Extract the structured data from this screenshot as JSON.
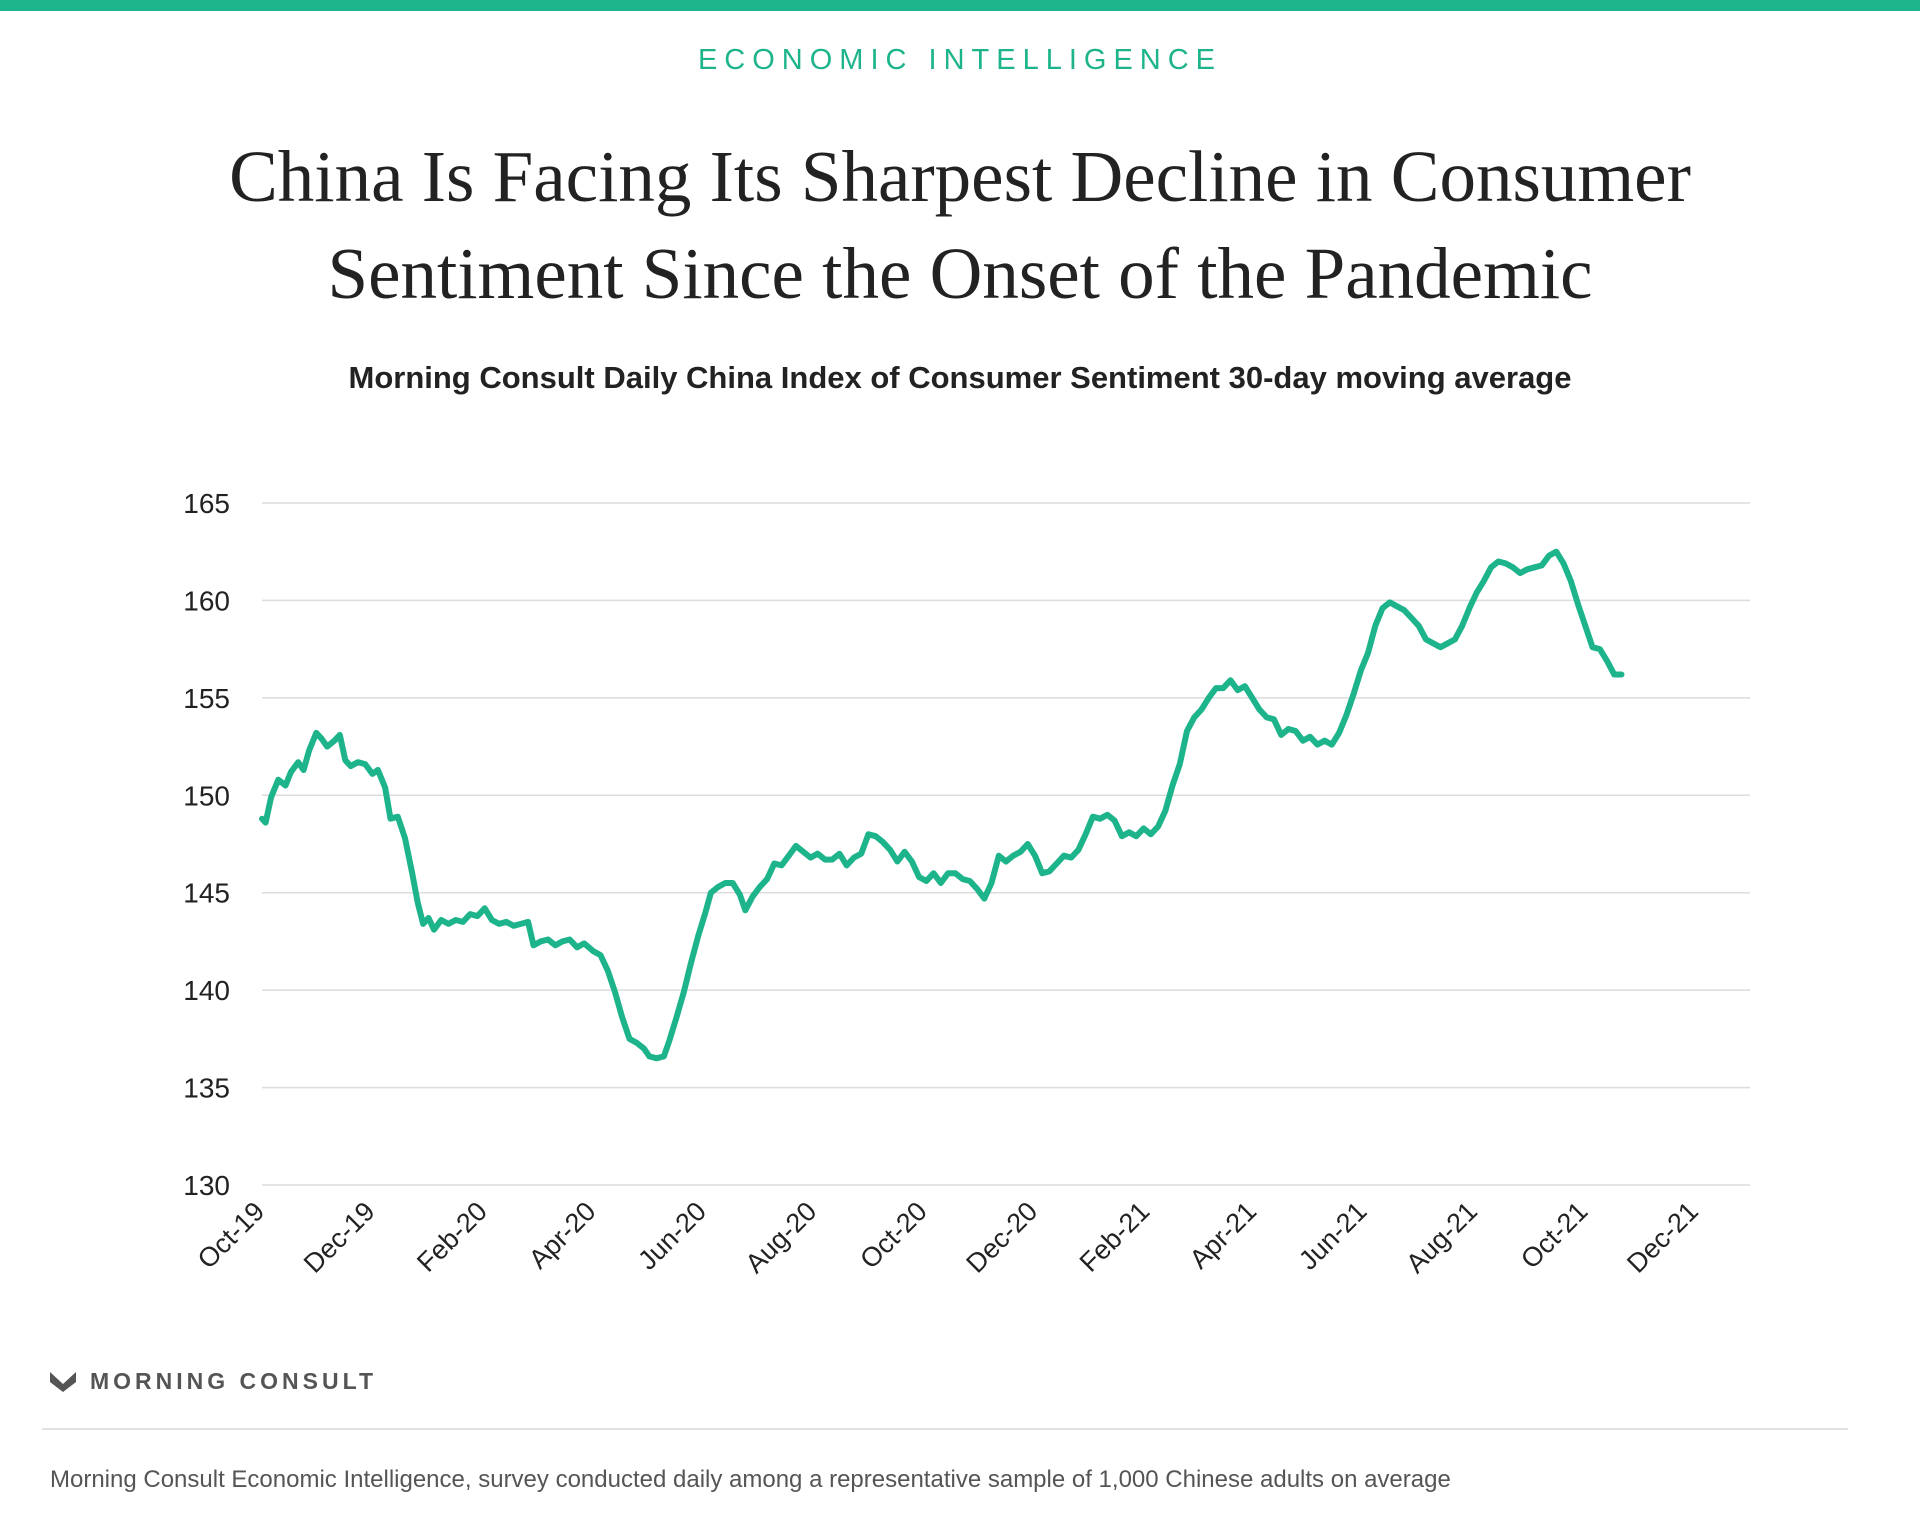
{
  "colors": {
    "accent": "#1db48b",
    "grid": "#dcdcdc",
    "text": "#222222"
  },
  "header": {
    "kicker": "ECONOMIC INTELLIGENCE",
    "title_line1": "China Is Facing Its Sharpest Decline in Consumer",
    "title_line2": "Sentiment Since the Onset of the Pandemic"
  },
  "footer": {
    "brand": "MORNING CONSULT",
    "source": "Morning Consult Economic Intelligence, survey conducted daily among a representative sample of 1,000 Chinese adults on average"
  },
  "chart_data": {
    "type": "line",
    "title": "Morning Consult Daily China Index of Consumer Sentiment 30-day moving average",
    "xlabel": "",
    "ylabel": "",
    "ylim": [
      130,
      165
    ],
    "yticks": [
      130,
      135,
      140,
      145,
      150,
      155,
      160,
      165
    ],
    "xlim": [
      "2019-10-01",
      "2021-12-31"
    ],
    "xticks": [
      {
        "label": "Oct-19",
        "date": "2019-10-01"
      },
      {
        "label": "Dec-19",
        "date": "2019-12-01"
      },
      {
        "label": "Feb-20",
        "date": "2020-02-01"
      },
      {
        "label": "Apr-20",
        "date": "2020-04-01"
      },
      {
        "label": "Jun-20",
        "date": "2020-06-01"
      },
      {
        "label": "Aug-20",
        "date": "2020-08-01"
      },
      {
        "label": "Oct-20",
        "date": "2020-10-01"
      },
      {
        "label": "Dec-20",
        "date": "2020-12-01"
      },
      {
        "label": "Feb-21",
        "date": "2021-02-01"
      },
      {
        "label": "Apr-21",
        "date": "2021-04-01"
      },
      {
        "label": "Jun-21",
        "date": "2021-06-01"
      },
      {
        "label": "Aug-21",
        "date": "2021-08-01"
      },
      {
        "label": "Oct-21",
        "date": "2021-10-01"
      },
      {
        "label": "Dec-21",
        "date": "2021-12-01"
      }
    ],
    "grid": true,
    "legend": "none",
    "series": [
      {
        "points": [
          [
            "2019-10-01",
            148.8
          ],
          [
            "2019-10-03",
            148.6
          ],
          [
            "2019-10-06",
            149.9
          ],
          [
            "2019-10-10",
            150.8
          ],
          [
            "2019-10-14",
            150.5
          ],
          [
            "2019-10-17",
            151.2
          ],
          [
            "2019-10-21",
            151.7
          ],
          [
            "2019-10-24",
            151.3
          ],
          [
            "2019-10-27",
            152.3
          ],
          [
            "2019-10-31",
            153.2
          ],
          [
            "2019-11-03",
            152.9
          ],
          [
            "2019-11-06",
            152.5
          ],
          [
            "2019-11-10",
            152.8
          ],
          [
            "2019-11-13",
            153.1
          ],
          [
            "2019-11-16",
            151.8
          ],
          [
            "2019-11-19",
            151.5
          ],
          [
            "2019-11-23",
            151.7
          ],
          [
            "2019-11-27",
            151.6
          ],
          [
            "2019-12-01",
            151.1
          ],
          [
            "2019-12-04",
            151.3
          ],
          [
            "2019-12-08",
            150.4
          ],
          [
            "2019-12-11",
            148.8
          ],
          [
            "2019-12-15",
            148.9
          ],
          [
            "2019-12-19",
            147.8
          ],
          [
            "2019-12-23",
            146.0
          ],
          [
            "2019-12-26",
            144.5
          ],
          [
            "2019-12-29",
            143.4
          ],
          [
            "2020-01-01",
            143.7
          ],
          [
            "2020-01-04",
            143.1
          ],
          [
            "2020-01-08",
            143.6
          ],
          [
            "2020-01-12",
            143.4
          ],
          [
            "2020-01-16",
            143.6
          ],
          [
            "2020-01-20",
            143.5
          ],
          [
            "2020-01-24",
            143.9
          ],
          [
            "2020-01-28",
            143.8
          ],
          [
            "2020-02-01",
            144.2
          ],
          [
            "2020-02-05",
            143.6
          ],
          [
            "2020-02-09",
            143.4
          ],
          [
            "2020-02-13",
            143.5
          ],
          [
            "2020-02-17",
            143.3
          ],
          [
            "2020-02-21",
            143.4
          ],
          [
            "2020-02-25",
            143.5
          ],
          [
            "2020-02-28",
            142.3
          ],
          [
            "2020-03-03",
            142.5
          ],
          [
            "2020-03-07",
            142.6
          ],
          [
            "2020-03-11",
            142.3
          ],
          [
            "2020-03-15",
            142.5
          ],
          [
            "2020-03-19",
            142.6
          ],
          [
            "2020-03-23",
            142.2
          ],
          [
            "2020-03-27",
            142.4
          ],
          [
            "2020-04-01",
            142.0
          ],
          [
            "2020-04-05",
            141.8
          ],
          [
            "2020-04-09",
            141.0
          ],
          [
            "2020-04-13",
            139.9
          ],
          [
            "2020-04-17",
            138.6
          ],
          [
            "2020-04-21",
            137.5
          ],
          [
            "2020-04-25",
            137.3
          ],
          [
            "2020-04-29",
            137.0
          ],
          [
            "2020-05-02",
            136.6
          ],
          [
            "2020-05-06",
            136.5
          ],
          [
            "2020-05-10",
            136.6
          ],
          [
            "2020-05-13",
            137.4
          ],
          [
            "2020-05-17",
            138.6
          ],
          [
            "2020-05-21",
            139.9
          ],
          [
            "2020-05-25",
            141.4
          ],
          [
            "2020-05-29",
            142.8
          ],
          [
            "2020-06-02",
            144.0
          ],
          [
            "2020-06-05",
            145.0
          ],
          [
            "2020-06-09",
            145.3
          ],
          [
            "2020-06-13",
            145.5
          ],
          [
            "2020-06-17",
            145.5
          ],
          [
            "2020-06-21",
            144.9
          ],
          [
            "2020-06-24",
            144.1
          ],
          [
            "2020-06-28",
            144.8
          ],
          [
            "2020-07-02",
            145.3
          ],
          [
            "2020-07-06",
            145.7
          ],
          [
            "2020-07-10",
            146.5
          ],
          [
            "2020-07-14",
            146.4
          ],
          [
            "2020-07-18",
            146.9
          ],
          [
            "2020-07-22",
            147.4
          ],
          [
            "2020-07-26",
            147.1
          ],
          [
            "2020-07-30",
            146.8
          ],
          [
            "2020-08-03",
            147.0
          ],
          [
            "2020-08-07",
            146.7
          ],
          [
            "2020-08-11",
            146.7
          ],
          [
            "2020-08-15",
            147.0
          ],
          [
            "2020-08-19",
            146.4
          ],
          [
            "2020-08-23",
            146.8
          ],
          [
            "2020-08-27",
            147.0
          ],
          [
            "2020-08-31",
            148.0
          ],
          [
            "2020-09-04",
            147.9
          ],
          [
            "2020-09-08",
            147.6
          ],
          [
            "2020-09-12",
            147.2
          ],
          [
            "2020-09-16",
            146.6
          ],
          [
            "2020-09-20",
            147.1
          ],
          [
            "2020-09-24",
            146.6
          ],
          [
            "2020-09-28",
            145.8
          ],
          [
            "2020-10-02",
            145.6
          ],
          [
            "2020-10-06",
            146.0
          ],
          [
            "2020-10-10",
            145.5
          ],
          [
            "2020-10-14",
            146.0
          ],
          [
            "2020-10-18",
            146.0
          ],
          [
            "2020-10-22",
            145.7
          ],
          [
            "2020-10-26",
            145.6
          ],
          [
            "2020-10-30",
            145.2
          ],
          [
            "2020-11-03",
            144.7
          ],
          [
            "2020-11-07",
            145.5
          ],
          [
            "2020-11-11",
            146.9
          ],
          [
            "2020-11-15",
            146.6
          ],
          [
            "2020-11-19",
            146.9
          ],
          [
            "2020-11-23",
            147.1
          ],
          [
            "2020-11-27",
            147.5
          ],
          [
            "2020-12-01",
            146.9
          ],
          [
            "2020-12-05",
            146.0
          ],
          [
            "2020-12-09",
            146.1
          ],
          [
            "2020-12-13",
            146.5
          ],
          [
            "2020-12-17",
            146.9
          ],
          [
            "2020-12-21",
            146.8
          ],
          [
            "2020-12-25",
            147.2
          ],
          [
            "2020-12-29",
            148.0
          ],
          [
            "2021-01-02",
            148.9
          ],
          [
            "2021-01-06",
            148.8
          ],
          [
            "2021-01-10",
            149.0
          ],
          [
            "2021-01-14",
            148.7
          ],
          [
            "2021-01-18",
            147.9
          ],
          [
            "2021-01-22",
            148.1
          ],
          [
            "2021-01-26",
            147.9
          ],
          [
            "2021-01-30",
            148.3
          ],
          [
            "2021-02-03",
            148.0
          ],
          [
            "2021-02-07",
            148.4
          ],
          [
            "2021-02-11",
            149.2
          ],
          [
            "2021-02-15",
            150.5
          ],
          [
            "2021-02-19",
            151.6
          ],
          [
            "2021-02-23",
            153.3
          ],
          [
            "2021-02-27",
            154.0
          ],
          [
            "2021-03-03",
            154.4
          ],
          [
            "2021-03-07",
            155.0
          ],
          [
            "2021-03-11",
            155.5
          ],
          [
            "2021-03-15",
            155.5
          ],
          [
            "2021-03-19",
            155.9
          ],
          [
            "2021-03-23",
            155.4
          ],
          [
            "2021-03-27",
            155.6
          ],
          [
            "2021-03-31",
            155.0
          ],
          [
            "2021-04-04",
            154.4
          ],
          [
            "2021-04-08",
            154.0
          ],
          [
            "2021-04-12",
            153.9
          ],
          [
            "2021-04-16",
            153.1
          ],
          [
            "2021-04-20",
            153.4
          ],
          [
            "2021-04-24",
            153.3
          ],
          [
            "2021-04-28",
            152.8
          ],
          [
            "2021-05-02",
            153.0
          ],
          [
            "2021-05-06",
            152.6
          ],
          [
            "2021-05-10",
            152.8
          ],
          [
            "2021-05-14",
            152.6
          ],
          [
            "2021-05-18",
            153.2
          ],
          [
            "2021-05-22",
            154.1
          ],
          [
            "2021-05-26",
            155.2
          ],
          [
            "2021-05-30",
            156.4
          ],
          [
            "2021-06-03",
            157.3
          ],
          [
            "2021-06-07",
            158.7
          ],
          [
            "2021-06-11",
            159.6
          ],
          [
            "2021-06-15",
            159.9
          ],
          [
            "2021-06-19",
            159.7
          ],
          [
            "2021-06-23",
            159.5
          ],
          [
            "2021-06-27",
            159.1
          ],
          [
            "2021-07-01",
            158.7
          ],
          [
            "2021-07-05",
            158.0
          ],
          [
            "2021-07-09",
            157.8
          ],
          [
            "2021-07-13",
            157.6
          ],
          [
            "2021-07-17",
            157.8
          ],
          [
            "2021-07-21",
            158.0
          ],
          [
            "2021-07-25",
            158.7
          ],
          [
            "2021-07-29",
            159.6
          ],
          [
            "2021-08-02",
            160.4
          ],
          [
            "2021-08-06",
            161.0
          ],
          [
            "2021-08-10",
            161.7
          ],
          [
            "2021-08-14",
            162.0
          ],
          [
            "2021-08-18",
            161.9
          ],
          [
            "2021-08-22",
            161.7
          ],
          [
            "2021-08-26",
            161.4
          ],
          [
            "2021-08-30",
            161.6
          ],
          [
            "2021-09-03",
            161.7
          ],
          [
            "2021-09-07",
            161.8
          ],
          [
            "2021-09-11",
            162.3
          ],
          [
            "2021-09-15",
            162.5
          ],
          [
            "2021-09-19",
            161.9
          ],
          [
            "2021-09-23",
            161.0
          ],
          [
            "2021-09-27",
            159.8
          ],
          [
            "2021-10-01",
            158.7
          ],
          [
            "2021-10-05",
            157.6
          ],
          [
            "2021-10-09",
            157.5
          ],
          [
            "2021-10-13",
            156.9
          ],
          [
            "2021-10-17",
            156.2
          ],
          [
            "2021-10-21",
            156.2
          ]
        ]
      }
    ]
  }
}
